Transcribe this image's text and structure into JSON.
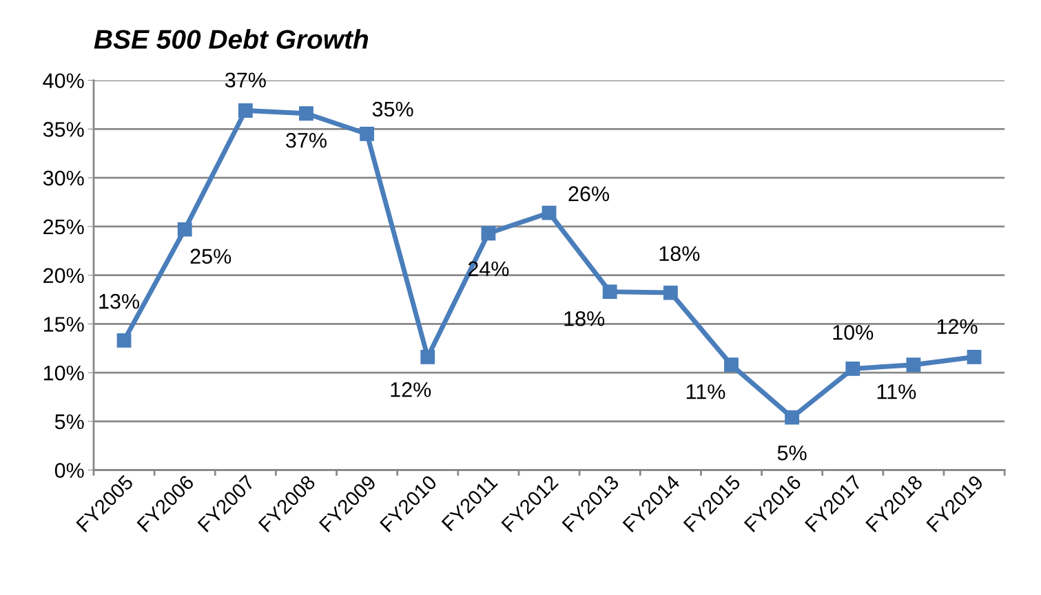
{
  "chart_data": {
    "type": "line",
    "title": "BSE 500 Debt Growth",
    "categories": [
      "FY2005",
      "FY2006",
      "FY2007",
      "FY2008",
      "FY2009",
      "FY2010",
      "FY2011",
      "FY2012",
      "FY2013",
      "FY2014",
      "FY2015",
      "FY2016",
      "FY2017",
      "FY2018",
      "FY2019"
    ],
    "series": [
      {
        "color": "#4a7ebb",
        "values": [
          13.3,
          24.7,
          36.9,
          36.6,
          34.5,
          11.6,
          24.3,
          26.4,
          18.3,
          18.2,
          10.8,
          5.4,
          10.4,
          10.8,
          11.6
        ],
        "value_labels": [
          "13%",
          "25%",
          "37%",
          "37%",
          "35%",
          "12%",
          "24%",
          "26%",
          "18%",
          "18%",
          "11%",
          "5%",
          "10%",
          "11%",
          "12%"
        ]
      }
    ],
    "ylim": [
      0,
      40
    ],
    "yticks": [
      {
        "value": 0,
        "label": "0%"
      },
      {
        "value": 5,
        "label": "5%"
      },
      {
        "value": 10,
        "label": "10%"
      },
      {
        "value": 15,
        "label": "15%"
      },
      {
        "value": 20,
        "label": "20%"
      },
      {
        "value": 25,
        "label": "25%"
      },
      {
        "value": 30,
        "label": "30%"
      },
      {
        "value": 35,
        "label": "35%"
      },
      {
        "value": 40,
        "label": "40%"
      }
    ],
    "grid": "y",
    "marker": "square",
    "line_style": "solid"
  }
}
